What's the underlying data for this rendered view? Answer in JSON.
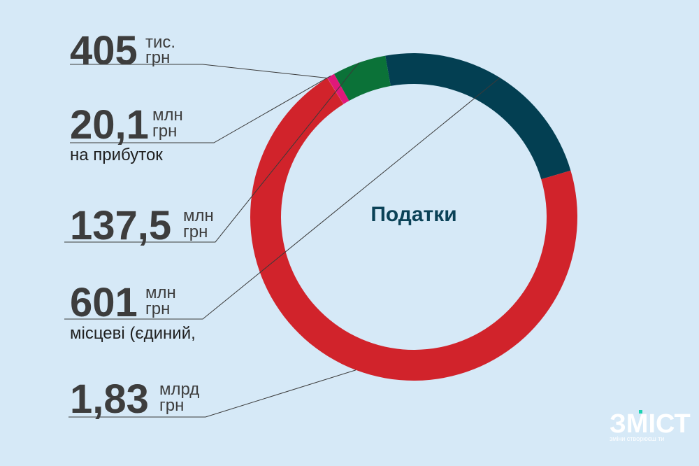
{
  "chart_data": {
    "type": "pie",
    "title": "Податки",
    "slices": [
      {
        "amount": "405",
        "unit_top": "тис.",
        "unit_bottom": "грн",
        "value": 0.000405,
        "description": "",
        "color": "#f2d31b"
      },
      {
        "amount": "20,1",
        "unit_top": "млн",
        "unit_bottom": "грн",
        "value": 0.0201,
        "description": "на прибуток",
        "color": "#e0187a"
      },
      {
        "amount": "137,5",
        "unit_top": "млн",
        "unit_bottom": "грн",
        "value": 0.1375,
        "description": "",
        "color": "#0b7238"
      },
      {
        "amount": "601",
        "unit_top": "млн",
        "unit_bottom": "грн",
        "value": 0.601,
        "description": "місцеві (єдиний,",
        "color": "#033f52"
      },
      {
        "amount": "1,83",
        "unit_top": "млрд",
        "unit_bottom": "грн",
        "value": 1.83,
        "description": "",
        "color": "#d1232b"
      }
    ],
    "value_units": "млрд грн"
  },
  "logo": {
    "text": "ЗМІСТ",
    "tagline": "зміни створюєш ти"
  }
}
